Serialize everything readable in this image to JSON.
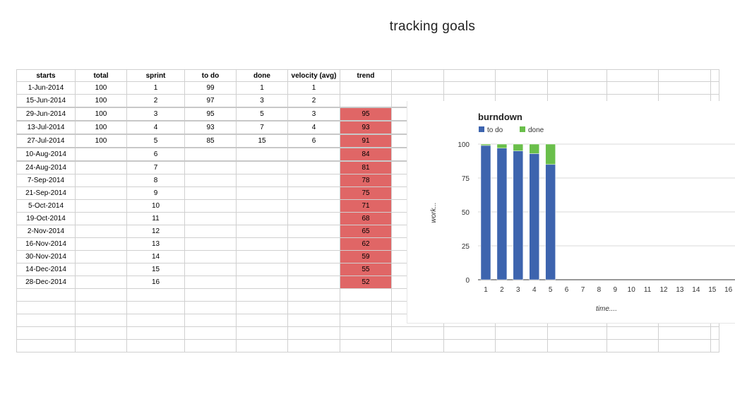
{
  "page": {
    "title": "tracking goals"
  },
  "sheet": {
    "headers": [
      "starts",
      "total",
      "sprint",
      "to do",
      "done",
      "velocity (avg)",
      "trend"
    ],
    "rows": [
      {
        "starts": "1-Jun-2014",
        "total": "100",
        "sprint": "1",
        "todo": "99",
        "done": "1",
        "velocity": "1",
        "trend": ""
      },
      {
        "starts": "15-Jun-2014",
        "total": "100",
        "sprint": "2",
        "todo": "97",
        "done": "3",
        "velocity": "2",
        "trend": ""
      },
      {
        "starts": "29-Jun-2014",
        "total": "100",
        "sprint": "3",
        "todo": "95",
        "done": "5",
        "velocity": "3",
        "trend": "95"
      },
      {
        "starts": "13-Jul-2014",
        "total": "100",
        "sprint": "4",
        "todo": "93",
        "done": "7",
        "velocity": "4",
        "trend": "93"
      },
      {
        "starts": "27-Jul-2014",
        "total": "100",
        "sprint": "5",
        "todo": "85",
        "done": "15",
        "velocity": "6",
        "trend": "91"
      },
      {
        "starts": "10-Aug-2014",
        "total": "",
        "sprint": "6",
        "todo": "",
        "done": "",
        "velocity": "",
        "trend": "84"
      },
      {
        "starts": "24-Aug-2014",
        "total": "",
        "sprint": "7",
        "todo": "",
        "done": "",
        "velocity": "",
        "trend": "81"
      },
      {
        "starts": "7-Sep-2014",
        "total": "",
        "sprint": "8",
        "todo": "",
        "done": "",
        "velocity": "",
        "trend": "78"
      },
      {
        "starts": "21-Sep-2014",
        "total": "",
        "sprint": "9",
        "todo": "",
        "done": "",
        "velocity": "",
        "trend": "75"
      },
      {
        "starts": "5-Oct-2014",
        "total": "",
        "sprint": "10",
        "todo": "",
        "done": "",
        "velocity": "",
        "trend": "71"
      },
      {
        "starts": "19-Oct-2014",
        "total": "",
        "sprint": "11",
        "todo": "",
        "done": "",
        "velocity": "",
        "trend": "68"
      },
      {
        "starts": "2-Nov-2014",
        "total": "",
        "sprint": "12",
        "todo": "",
        "done": "",
        "velocity": "",
        "trend": "65"
      },
      {
        "starts": "16-Nov-2014",
        "total": "",
        "sprint": "13",
        "todo": "",
        "done": "",
        "velocity": "",
        "trend": "62"
      },
      {
        "starts": "30-Nov-2014",
        "total": "",
        "sprint": "14",
        "todo": "",
        "done": "",
        "velocity": "",
        "trend": "59"
      },
      {
        "starts": "14-Dec-2014",
        "total": "",
        "sprint": "15",
        "todo": "",
        "done": "",
        "velocity": "",
        "trend": "55"
      },
      {
        "starts": "28-Dec-2014",
        "total": "",
        "sprint": "16",
        "todo": "",
        "done": "",
        "velocity": "",
        "trend": "52"
      }
    ],
    "trend_color": "#e06666",
    "empty_rows": 5
  },
  "chart_data": {
    "type": "bar",
    "stacked": true,
    "title": "burndown",
    "xlabel": "time....",
    "ylabel": "work...",
    "categories": [
      "1",
      "2",
      "3",
      "4",
      "5",
      "6",
      "7",
      "8",
      "9",
      "10",
      "11",
      "12",
      "13",
      "14",
      "15",
      "16"
    ],
    "series": [
      {
        "name": "to do",
        "color": "#3d64ae",
        "values": [
          99,
          97,
          95,
          93,
          85,
          null,
          null,
          null,
          null,
          null,
          null,
          null,
          null,
          null,
          null,
          null
        ]
      },
      {
        "name": "done",
        "color": "#6abf4b",
        "values": [
          1,
          3,
          5,
          7,
          15,
          null,
          null,
          null,
          null,
          null,
          null,
          null,
          null,
          null,
          null,
          null
        ]
      }
    ],
    "yticks": [
      "0",
      "25",
      "50",
      "75",
      "100"
    ],
    "ylim": [
      0,
      100
    ],
    "grid": true,
    "legend": "top-left"
  }
}
